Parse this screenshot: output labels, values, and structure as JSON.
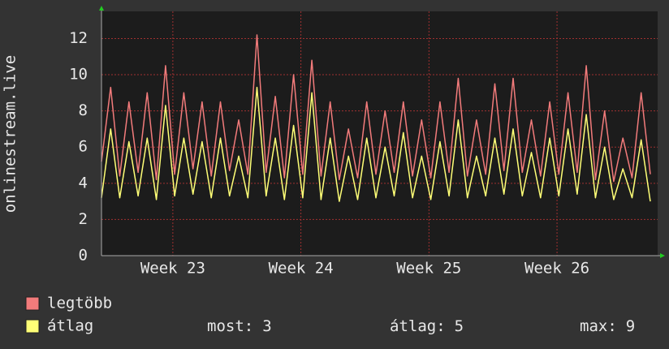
{
  "chart_data": {
    "type": "line",
    "y_label": "onlinestream.live",
    "xlim": [
      0,
      30.4
    ],
    "xticks": [
      {
        "value": 3.9,
        "label": "Week 23"
      },
      {
        "value": 10.9,
        "label": "Week 24"
      },
      {
        "value": 17.9,
        "label": "Week 25"
      },
      {
        "value": 24.9,
        "label": "Week 26"
      }
    ],
    "ylim": [
      0,
      13.5
    ],
    "yticks": [
      0,
      2,
      4,
      6,
      8,
      10,
      12
    ],
    "grid": true,
    "x": [
      0,
      0.5,
      1,
      1.5,
      2,
      2.5,
      3,
      3.5,
      4,
      4.5,
      5,
      5.5,
      6,
      6.5,
      7,
      7.5,
      8,
      8.5,
      9,
      9.5,
      10,
      10.5,
      11,
      11.5,
      12,
      12.5,
      13,
      13.5,
      14,
      14.5,
      15,
      15.5,
      16,
      16.5,
      17,
      17.5,
      18,
      18.5,
      19,
      19.5,
      20,
      20.5,
      21,
      21.5,
      22,
      22.5,
      23,
      23.5,
      24,
      24.5,
      25,
      25.5,
      26,
      26.5,
      27,
      27.5,
      28,
      28.5,
      29,
      29.5,
      30
    ],
    "series": [
      {
        "name": "legtöbb",
        "color": "#f27b7b",
        "values": [
          5.2,
          9.3,
          4.4,
          8.5,
          4.6,
          9,
          4.2,
          10.5,
          4.5,
          9,
          4.8,
          8.5,
          4.4,
          8.5,
          4.7,
          7.5,
          4.5,
          12.2,
          4.6,
          8.8,
          4.3,
          10,
          4.5,
          10.8,
          4.4,
          8.5,
          4.2,
          7,
          4.3,
          8.5,
          4.5,
          8,
          4.6,
          8.5,
          4.4,
          7.5,
          4.3,
          8.5,
          4.6,
          9.8,
          4.4,
          7.5,
          4.5,
          9.5,
          4.7,
          9.8,
          4.6,
          7.5,
          4.4,
          8.5,
          4.5,
          9,
          4.6,
          10.5,
          4.2,
          8,
          4.1,
          6.5,
          4.3,
          9,
          4.5
        ]
      },
      {
        "name": "átlag",
        "color": "#ffff77",
        "values": [
          3.2,
          7,
          3.2,
          6.3,
          3.3,
          6.5,
          3.1,
          8.3,
          3.3,
          6.5,
          3.4,
          6.3,
          3.2,
          6.5,
          3.3,
          5.5,
          3.2,
          9.3,
          3.3,
          6.5,
          3.1,
          7.2,
          3.2,
          9,
          3.1,
          6.5,
          3,
          5.5,
          3.1,
          6.5,
          3.2,
          6,
          3.3,
          6.8,
          3.2,
          5.5,
          3.1,
          6.3,
          3.3,
          7.5,
          3.2,
          5.5,
          3.3,
          6.5,
          3.4,
          7,
          3.3,
          5.7,
          3.2,
          6.5,
          3.3,
          7,
          3.4,
          7.8,
          3.2,
          6,
          3.1,
          4.8,
          3.2,
          6.4,
          3
        ]
      }
    ],
    "stats": [
      {
        "label": "most:",
        "value": 3
      },
      {
        "label": "átlag:",
        "value": 5
      },
      {
        "label": "max:",
        "value": 9
      }
    ]
  }
}
